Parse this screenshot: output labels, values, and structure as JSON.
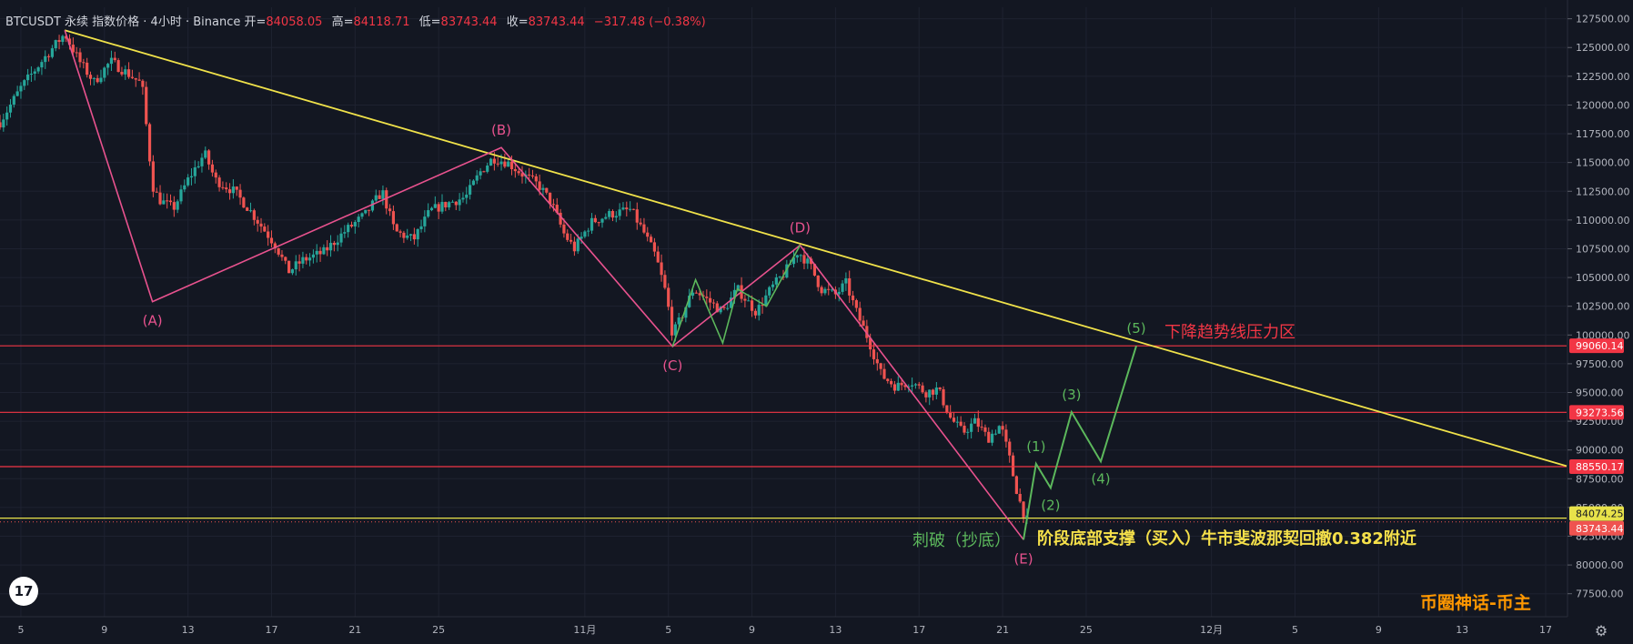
{
  "header": {
    "symbol": "BTCUSDT 永续 指数价格 · 4小时 · Binance",
    "open_label": "开=",
    "open": "84058.05",
    "high_label": "高=",
    "high": "84118.71",
    "low_label": "低=",
    "low": "83743.44",
    "close_label": "收=",
    "close": "83743.44",
    "change": "−317.48 (−0.38%)"
  },
  "watermark": "币圈神话-币主",
  "tv_logo": "17",
  "icons": {
    "logo": "tradingview-logo-icon",
    "settings": "gear-icon"
  },
  "colors": {
    "background": "#131722",
    "up": "#26a69a",
    "down": "#ef5350",
    "trendline": "#f0e24a",
    "abcde": "#e8528e",
    "impulse": "#5cb85c",
    "hline": "#f23645",
    "price_tag": "#e8e24a",
    "brand": "#ff9800"
  },
  "chart_data": {
    "type": "candlestick",
    "timeframe": "4h",
    "y_ticks": [
      "127500.00",
      "125000.00",
      "122500.00",
      "120000.00",
      "117500.00",
      "115000.00",
      "112500.00",
      "110000.00",
      "107500.00",
      "105000.00",
      "102500.00",
      "100000.00",
      "97500.00",
      "95000.00",
      "92500.00",
      "90000.00",
      "87500.00",
      "85000.00",
      "82500.00",
      "80000.00",
      "77500.00"
    ],
    "ylim": [
      75500,
      128500
    ],
    "x_ticks": [
      {
        "label": "5",
        "day": 5
      },
      {
        "label": "9",
        "day": 9
      },
      {
        "label": "13",
        "day": 13
      },
      {
        "label": "17",
        "day": 17
      },
      {
        "label": "21",
        "day": 21
      },
      {
        "label": "25",
        "day": 25
      },
      {
        "label": "11月",
        "day": 32
      },
      {
        "label": "5",
        "day": 36
      },
      {
        "label": "9",
        "day": 40
      },
      {
        "label": "13",
        "day": 44
      },
      {
        "label": "17",
        "day": 48
      },
      {
        "label": "21",
        "day": 52
      },
      {
        "label": "25",
        "day": 56
      },
      {
        "label": "12月",
        "day": 62
      },
      {
        "label": "5",
        "day": 66
      },
      {
        "label": "9",
        "day": 70
      },
      {
        "label": "13",
        "day": 74
      },
      {
        "label": "17",
        "day": 78
      }
    ],
    "xlim_days": [
      4.0,
      79.0
    ],
    "candle_path": [
      {
        "d": 4.0,
        "p": 118500
      },
      {
        "d": 5.0,
        "p": 121500
      },
      {
        "d": 6.3,
        "p": 124500
      },
      {
        "d": 7.1,
        "p": 126200
      },
      {
        "d": 7.8,
        "p": 123800
      },
      {
        "d": 8.5,
        "p": 122000
      },
      {
        "d": 9.3,
        "p": 123800
      },
      {
        "d": 10.3,
        "p": 122500
      },
      {
        "d": 10.8,
        "p": 121800
      },
      {
        "d": 11.3,
        "p": 113000
      },
      {
        "d": 11.6,
        "p": 111800
      },
      {
        "d": 12.3,
        "p": 111000
      },
      {
        "d": 13.0,
        "p": 113500
      },
      {
        "d": 13.8,
        "p": 115800
      },
      {
        "d": 14.3,
        "p": 113500
      },
      {
        "d": 15.2,
        "p": 112500
      },
      {
        "d": 15.9,
        "p": 111000
      },
      {
        "d": 16.5,
        "p": 109500
      },
      {
        "d": 17.2,
        "p": 107800
      },
      {
        "d": 17.8,
        "p": 105500
      },
      {
        "d": 18.5,
        "p": 106500
      },
      {
        "d": 19.5,
        "p": 107200
      },
      {
        "d": 20.5,
        "p": 109000
      },
      {
        "d": 21.5,
        "p": 110500
      },
      {
        "d": 22.3,
        "p": 112500
      },
      {
        "d": 22.9,
        "p": 109000
      },
      {
        "d": 23.8,
        "p": 108300
      },
      {
        "d": 24.6,
        "p": 110800
      },
      {
        "d": 25.5,
        "p": 111500
      },
      {
        "d": 26.3,
        "p": 112000
      },
      {
        "d": 27.0,
        "p": 114200
      },
      {
        "d": 27.6,
        "p": 115400
      },
      {
        "d": 28.3,
        "p": 115000
      },
      {
        "d": 29.0,
        "p": 114000
      },
      {
        "d": 29.8,
        "p": 113000
      },
      {
        "d": 30.4,
        "p": 111500
      },
      {
        "d": 31.0,
        "p": 108800
      },
      {
        "d": 31.5,
        "p": 107500
      },
      {
        "d": 32.3,
        "p": 109800
      },
      {
        "d": 33.2,
        "p": 110500
      },
      {
        "d": 34.2,
        "p": 110900
      },
      {
        "d": 34.8,
        "p": 109000
      },
      {
        "d": 35.4,
        "p": 106800
      },
      {
        "d": 35.9,
        "p": 103500
      },
      {
        "d": 36.2,
        "p": 100000
      },
      {
        "d": 36.6,
        "p": 101500
      },
      {
        "d": 37.2,
        "p": 104000
      },
      {
        "d": 37.9,
        "p": 103000
      },
      {
        "d": 38.6,
        "p": 102000
      },
      {
        "d": 39.3,
        "p": 104000
      },
      {
        "d": 40.2,
        "p": 102000
      },
      {
        "d": 40.9,
        "p": 104000
      },
      {
        "d": 41.6,
        "p": 105500
      },
      {
        "d": 42.2,
        "p": 107300
      },
      {
        "d": 42.8,
        "p": 106000
      },
      {
        "d": 43.3,
        "p": 104000
      },
      {
        "d": 44.0,
        "p": 103500
      },
      {
        "d": 44.5,
        "p": 104500
      },
      {
        "d": 45.0,
        "p": 102000
      },
      {
        "d": 45.6,
        "p": 99500
      },
      {
        "d": 46.2,
        "p": 96500
      },
      {
        "d": 46.9,
        "p": 95500
      },
      {
        "d": 47.6,
        "p": 96000
      },
      {
        "d": 48.3,
        "p": 95000
      },
      {
        "d": 48.9,
        "p": 95300
      },
      {
        "d": 49.5,
        "p": 92800
      },
      {
        "d": 50.1,
        "p": 91500
      },
      {
        "d": 50.7,
        "p": 92500
      },
      {
        "d": 51.3,
        "p": 91000
      },
      {
        "d": 51.9,
        "p": 92200
      },
      {
        "d": 52.3,
        "p": 89500
      },
      {
        "d": 52.6,
        "p": 87000
      },
      {
        "d": 52.9,
        "p": 85000
      },
      {
        "d": 53.2,
        "p": 83743
      }
    ],
    "overlays": {
      "trendline": [
        {
          "d": 7.1,
          "p": 126500
        },
        {
          "d": 79.0,
          "p": 88600
        }
      ],
      "abcde_wave": [
        {
          "label": "(A)",
          "d": 11.3,
          "p": 102900
        },
        {
          "label": "(B)",
          "d": 28.0,
          "p": 116300
        },
        {
          "label": "(C)",
          "d": 36.2,
          "p": 99000
        },
        {
          "label": "(D)",
          "d": 42.3,
          "p": 107800
        },
        {
          "label": "(E)",
          "d": 53.0,
          "p": 82200
        }
      ],
      "abcde_start": {
        "d": 7.1,
        "p": 126500
      },
      "c_to_d_subwave": [
        {
          "d": 36.2,
          "p": 99000
        },
        {
          "d": 37.3,
          "p": 104800
        },
        {
          "d": 38.6,
          "p": 99300
        },
        {
          "d": 39.3,
          "p": 104000
        },
        {
          "d": 40.7,
          "p": 102500
        },
        {
          "d": 42.3,
          "p": 107800
        }
      ],
      "projection_1_5": [
        {
          "label": "",
          "d": 53.0,
          "p": 82200
        },
        {
          "label": "(1)",
          "d": 53.6,
          "p": 88800
        },
        {
          "label": "(2)",
          "d": 54.3,
          "p": 86700
        },
        {
          "label": "(3)",
          "d": 55.3,
          "p": 93300
        },
        {
          "label": "(4)",
          "d": 56.7,
          "p": 89000
        },
        {
          "label": "(5)",
          "d": 58.4,
          "p": 99060
        }
      ],
      "horizontal_lines": [
        {
          "price": 99060.14,
          "label": "99060.14",
          "style": "red"
        },
        {
          "price": 93273.56,
          "label": "93273.56",
          "style": "red"
        },
        {
          "price": 88550.17,
          "label": "88550.17",
          "style": "red"
        },
        {
          "price": 84074.25,
          "label": "84074.25",
          "style": "yellow"
        }
      ],
      "last_price": {
        "price": 83743.44,
        "label": "83743.44"
      }
    },
    "annotations": {
      "resistance": "下降趋势线压力区",
      "pierce": "刺破（抄底）",
      "support": "阶段底部支撑（买入）牛市斐波那契回撤0.382附近"
    }
  }
}
